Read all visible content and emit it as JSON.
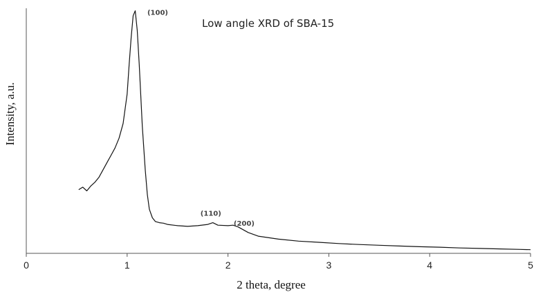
{
  "chart_data": {
    "type": "line",
    "title": "Low angle XRD of SBA-15",
    "xlabel": "2 theta, degree",
    "ylabel": "Intensity, a.u.",
    "xlim": [
      0,
      5
    ],
    "ylim": [
      0,
      100
    ],
    "x_ticks": [
      "0",
      "1",
      "2",
      "3",
      "4",
      "5"
    ],
    "y_ticks_visible": false,
    "grid": false,
    "legend": "none",
    "line_color": "#111111",
    "series": [
      {
        "x": [
          0.52,
          0.56,
          0.6,
          0.64,
          0.68,
          0.72,
          0.76,
          0.8,
          0.84,
          0.88,
          0.92,
          0.96,
          1.0,
          1.02,
          1.04,
          1.06,
          1.08,
          1.1,
          1.12,
          1.15,
          1.18,
          1.2,
          1.22,
          1.25,
          1.28,
          1.32,
          1.36,
          1.4,
          1.5,
          1.6,
          1.7,
          1.8,
          1.85,
          1.9,
          2.0,
          2.05,
          2.1,
          2.2,
          2.3,
          2.5,
          2.7,
          2.9,
          3.1,
          3.3,
          3.5,
          3.7,
          3.9,
          4.1,
          4.3,
          4.5,
          4.7,
          4.9,
          5.0
        ],
        "y": [
          26,
          27,
          25.5,
          27.5,
          29,
          31,
          34,
          37,
          40,
          43,
          47,
          53,
          65,
          77,
          88,
          97,
          99,
          91,
          77,
          52,
          34,
          24,
          18,
          14.5,
          13,
          12.5,
          12.3,
          11.8,
          11.3,
          11.0,
          11.3,
          11.8,
          12.5,
          11.5,
          11.3,
          11.5,
          10.8,
          8.5,
          7.0,
          5.8,
          5.0,
          4.5,
          4.0,
          3.6,
          3.3,
          3.0,
          2.7,
          2.5,
          2.2,
          2.0,
          1.8,
          1.6,
          1.5
        ]
      }
    ],
    "annotations": [
      {
        "text": "(100)",
        "x": 1.2,
        "y": 99
      },
      {
        "text": "(110)",
        "x": 1.83,
        "y": 17
      },
      {
        "text": "(200)",
        "x": 2.16,
        "y": 13
      }
    ]
  }
}
